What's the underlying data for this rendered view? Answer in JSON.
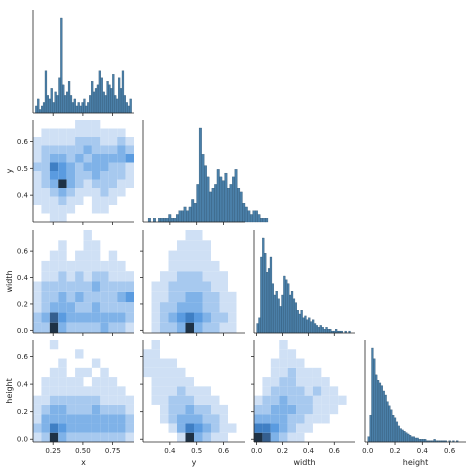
{
  "chart_data": {
    "type": "pairplot-corner",
    "variables": [
      "x",
      "y",
      "width",
      "height"
    ],
    "colors": {
      "hist_bar": "#4a7fa8",
      "heat_light": "#cfe0f5",
      "heat_mid": "#6da8e6",
      "heat_dark": "#2a4a6a"
    },
    "ticks": {
      "x": {
        "values": [
          0.25,
          0.5,
          0.75
        ],
        "labels": [
          "0.25",
          "0.50",
          "0.75"
        ]
      },
      "y": {
        "values": [
          0.4,
          0.5,
          0.6
        ],
        "labels": [
          "0.4",
          "0.5",
          "0.6"
        ]
      },
      "width": {
        "values": [
          0.0,
          0.2,
          0.4,
          0.6
        ],
        "labels": [
          "0.0",
          "0.2",
          "0.4",
          "0.6"
        ]
      },
      "height": {
        "values": [
          0.0,
          0.2,
          0.4,
          0.6
        ],
        "labels": [
          "0.0",
          "0.2",
          "0.4",
          "0.6"
        ]
      }
    },
    "ranges": {
      "x": [
        0.08,
        0.93
      ],
      "y": [
        0.3,
        0.68
      ],
      "width": [
        -0.02,
        0.76
      ],
      "height": [
        -0.02,
        0.72
      ]
    },
    "histograms": {
      "x": {
        "bin_start": 0.1,
        "bin_width": 0.0162,
        "counts": [
          2,
          4,
          1,
          2,
          3,
          12,
          5,
          4,
          7,
          3,
          6,
          5,
          10,
          27,
          8,
          5,
          6,
          9,
          5,
          3,
          4,
          2,
          3,
          2,
          3,
          4,
          2,
          3,
          5,
          9,
          6,
          7,
          8,
          12,
          10,
          6,
          5,
          9,
          8,
          7,
          11,
          5,
          4,
          10,
          7,
          12,
          5,
          3,
          2,
          4
        ]
      },
      "y": {
        "bin_start": 0.3,
        "bin_width": 0.0095,
        "counts": [
          0,
          0,
          1,
          0,
          1,
          0,
          1,
          1,
          1,
          1,
          2,
          1,
          1,
          2,
          3,
          3,
          4,
          3,
          4,
          6,
          5,
          10,
          25,
          18,
          15,
          12,
          8,
          9,
          10,
          14,
          12,
          11,
          13,
          9,
          10,
          12,
          14,
          9,
          8,
          5,
          4,
          3,
          2,
          3,
          3,
          2,
          1,
          1,
          1,
          0
        ]
      },
      "width": {
        "bin_start": 0.0,
        "bin_width": 0.0148,
        "counts": [
          5,
          8,
          40,
          50,
          42,
          32,
          34,
          40,
          26,
          20,
          22,
          18,
          14,
          20,
          30,
          28,
          26,
          20,
          22,
          18,
          16,
          12,
          10,
          12,
          8,
          9,
          7,
          8,
          6,
          7,
          5,
          4,
          3,
          4,
          3,
          2,
          3,
          2,
          2,
          1,
          1,
          2,
          1,
          1,
          1,
          0,
          1,
          0,
          1,
          0
        ]
      },
      "height": {
        "bin_start": 0.0,
        "bin_width": 0.0138,
        "counts": [
          4,
          20,
          70,
          62,
          50,
          46,
          44,
          42,
          38,
          35,
          30,
          27,
          24,
          20,
          18,
          15,
          12,
          10,
          9,
          8,
          7,
          6,
          5,
          4,
          4,
          3,
          3,
          2,
          2,
          2,
          2,
          1,
          1,
          1,
          1,
          2,
          1,
          1,
          1,
          1,
          1,
          1,
          0,
          1,
          0,
          1,
          0,
          1,
          0,
          0
        ]
      }
    },
    "bivariate": [
      {
        "xvar": "x",
        "yvar": "y",
        "nx": 12,
        "ny": 12,
        "grid": [
          [
            0,
            0,
            1,
            1,
            0,
            0,
            0,
            0,
            0,
            0,
            0,
            0
          ],
          [
            0,
            1,
            1,
            1,
            1,
            0,
            0,
            1,
            1,
            0,
            0,
            0
          ],
          [
            1,
            1,
            1,
            2,
            1,
            1,
            0,
            1,
            1,
            1,
            0,
            0
          ],
          [
            1,
            1,
            2,
            3,
            2,
            1,
            1,
            1,
            2,
            1,
            1,
            0
          ],
          [
            1,
            2,
            3,
            9,
            3,
            2,
            1,
            2,
            2,
            2,
            1,
            1
          ],
          [
            1,
            2,
            4,
            4,
            3,
            2,
            2,
            3,
            2,
            2,
            2,
            1
          ],
          [
            2,
            2,
            5,
            4,
            3,
            2,
            3,
            3,
            3,
            2,
            2,
            1
          ],
          [
            1,
            2,
            3,
            3,
            2,
            3,
            2,
            3,
            3,
            3,
            3,
            4
          ],
          [
            1,
            2,
            2,
            2,
            2,
            2,
            3,
            2,
            2,
            2,
            3,
            2
          ],
          [
            1,
            1,
            1,
            1,
            1,
            2,
            2,
            2,
            1,
            1,
            2,
            1
          ],
          [
            0,
            1,
            1,
            1,
            1,
            1,
            1,
            1,
            1,
            1,
            1,
            0
          ],
          [
            0,
            0,
            0,
            0,
            0,
            1,
            1,
            1,
            0,
            0,
            0,
            0
          ]
        ]
      },
      {
        "xvar": "x",
        "yvar": "width",
        "nx": 12,
        "ny": 10,
        "grid": [
          [
            2,
            2,
            9,
            3,
            2,
            2,
            2,
            2,
            3,
            2,
            2,
            1
          ],
          [
            2,
            3,
            6,
            4,
            3,
            3,
            3,
            3,
            3,
            3,
            3,
            2
          ],
          [
            1,
            2,
            3,
            3,
            3,
            2,
            2,
            3,
            2,
            2,
            2,
            2
          ],
          [
            1,
            2,
            2,
            3,
            2,
            3,
            2,
            2,
            2,
            2,
            3,
            4
          ],
          [
            1,
            2,
            2,
            2,
            2,
            2,
            2,
            3,
            2,
            2,
            2,
            2
          ],
          [
            0,
            1,
            1,
            2,
            1,
            2,
            1,
            2,
            2,
            1,
            1,
            1
          ],
          [
            0,
            1,
            1,
            1,
            1,
            1,
            1,
            1,
            1,
            1,
            1,
            0
          ],
          [
            0,
            0,
            1,
            1,
            0,
            1,
            1,
            1,
            0,
            1,
            0,
            0
          ],
          [
            0,
            0,
            0,
            1,
            0,
            0,
            1,
            1,
            0,
            0,
            0,
            0
          ],
          [
            0,
            0,
            0,
            0,
            0,
            0,
            1,
            0,
            0,
            0,
            0,
            0
          ]
        ]
      },
      {
        "xvar": "y",
        "yvar": "width",
        "nx": 12,
        "ny": 10,
        "grid": [
          [
            0,
            1,
            2,
            2,
            3,
            9,
            3,
            2,
            2,
            1,
            1,
            0
          ],
          [
            0,
            1,
            2,
            3,
            4,
            5,
            4,
            3,
            2,
            2,
            1,
            0
          ],
          [
            0,
            1,
            2,
            2,
            3,
            3,
            3,
            2,
            2,
            1,
            1,
            0
          ],
          [
            0,
            1,
            1,
            2,
            2,
            3,
            3,
            2,
            2,
            1,
            1,
            0
          ],
          [
            0,
            1,
            1,
            2,
            2,
            2,
            2,
            2,
            1,
            1,
            0,
            0
          ],
          [
            0,
            0,
            1,
            1,
            2,
            2,
            2,
            1,
            1,
            1,
            0,
            0
          ],
          [
            0,
            0,
            0,
            1,
            1,
            1,
            1,
            1,
            1,
            0,
            0,
            0
          ],
          [
            0,
            0,
            0,
            1,
            1,
            1,
            1,
            1,
            0,
            0,
            0,
            0
          ],
          [
            0,
            0,
            0,
            0,
            1,
            1,
            1,
            1,
            0,
            0,
            0,
            0
          ],
          [
            0,
            0,
            0,
            0,
            0,
            1,
            1,
            0,
            0,
            0,
            0,
            0
          ]
        ]
      },
      {
        "xvar": "x",
        "yvar": "height",
        "nx": 12,
        "ny": 11,
        "grid": [
          [
            1,
            2,
            9,
            3,
            2,
            2,
            2,
            2,
            2,
            2,
            2,
            1
          ],
          [
            2,
            3,
            5,
            4,
            3,
            3,
            3,
            3,
            3,
            3,
            3,
            2
          ],
          [
            1,
            3,
            3,
            3,
            3,
            3,
            3,
            3,
            3,
            3,
            3,
            2
          ],
          [
            1,
            2,
            3,
            3,
            2,
            2,
            2,
            3,
            2,
            2,
            2,
            1
          ],
          [
            1,
            1,
            2,
            2,
            2,
            2,
            2,
            2,
            1,
            1,
            1,
            1
          ],
          [
            0,
            1,
            1,
            1,
            1,
            1,
            1,
            1,
            1,
            1,
            1,
            0
          ],
          [
            0,
            1,
            1,
            1,
            1,
            1,
            0,
            1,
            1,
            1,
            0,
            0
          ],
          [
            0,
            0,
            1,
            1,
            0,
            1,
            1,
            0,
            1,
            0,
            0,
            0
          ],
          [
            0,
            0,
            0,
            1,
            0,
            0,
            0,
            1,
            0,
            0,
            0,
            0
          ],
          [
            0,
            0,
            0,
            0,
            0,
            1,
            0,
            0,
            0,
            0,
            0,
            0
          ],
          [
            0,
            0,
            1,
            0,
            0,
            0,
            0,
            0,
            0,
            0,
            0,
            0
          ]
        ]
      },
      {
        "xvar": "y",
        "yvar": "height",
        "nx": 12,
        "ny": 11,
        "grid": [
          [
            0,
            0,
            0,
            0,
            1,
            9,
            3,
            2,
            1,
            1,
            0,
            0
          ],
          [
            0,
            0,
            0,
            1,
            3,
            5,
            4,
            3,
            2,
            1,
            1,
            0
          ],
          [
            0,
            0,
            1,
            2,
            3,
            3,
            3,
            2,
            2,
            1,
            0,
            0
          ],
          [
            0,
            0,
            1,
            2,
            2,
            3,
            2,
            2,
            1,
            1,
            0,
            0
          ],
          [
            0,
            1,
            1,
            2,
            2,
            2,
            1,
            1,
            1,
            0,
            0,
            0
          ],
          [
            0,
            1,
            1,
            1,
            2,
            1,
            1,
            1,
            0,
            0,
            0,
            0
          ],
          [
            0,
            1,
            1,
            1,
            1,
            1,
            0,
            0,
            0,
            0,
            0,
            0
          ],
          [
            1,
            1,
            1,
            1,
            1,
            0,
            0,
            0,
            0,
            0,
            0,
            0
          ],
          [
            1,
            1,
            1,
            1,
            0,
            0,
            0,
            0,
            0,
            0,
            0,
            0
          ],
          [
            1,
            1,
            0,
            0,
            0,
            0,
            0,
            0,
            0,
            0,
            0,
            0
          ],
          [
            0,
            1,
            0,
            0,
            0,
            0,
            0,
            0,
            0,
            0,
            0,
            0
          ]
        ]
      },
      {
        "xvar": "width",
        "yvar": "height",
        "nx": 12,
        "ny": 11,
        "grid": [
          [
            9,
            6,
            3,
            2,
            1,
            1,
            0,
            0,
            0,
            0,
            0,
            0
          ],
          [
            5,
            5,
            4,
            3,
            2,
            1,
            1,
            0,
            0,
            0,
            0,
            0
          ],
          [
            3,
            3,
            3,
            3,
            2,
            2,
            1,
            1,
            1,
            0,
            0,
            0
          ],
          [
            2,
            2,
            3,
            3,
            3,
            2,
            2,
            1,
            1,
            1,
            0,
            0
          ],
          [
            1,
            2,
            2,
            3,
            2,
            2,
            2,
            1,
            1,
            1,
            1,
            0
          ],
          [
            0,
            1,
            2,
            2,
            2,
            2,
            1,
            2,
            1,
            1,
            0,
            0
          ],
          [
            0,
            1,
            1,
            2,
            2,
            1,
            1,
            1,
            1,
            0,
            0,
            0
          ],
          [
            0,
            0,
            1,
            1,
            2,
            1,
            1,
            1,
            0,
            0,
            0,
            0
          ],
          [
            0,
            0,
            1,
            1,
            1,
            1,
            0,
            0,
            0,
            0,
            0,
            0
          ],
          [
            0,
            0,
            0,
            1,
            1,
            0,
            0,
            0,
            0,
            0,
            0,
            0
          ],
          [
            0,
            0,
            0,
            1,
            0,
            0,
            0,
            0,
            0,
            0,
            0,
            0
          ]
        ]
      }
    ]
  }
}
